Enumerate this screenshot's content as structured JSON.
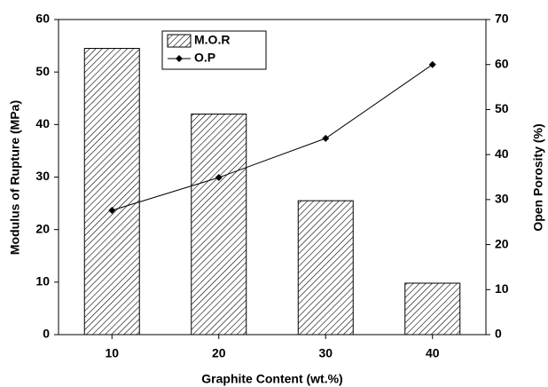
{
  "chart_data": {
    "type": "bar",
    "xlabel": "Graphite Content (wt.%)",
    "ylabel": "Modulus of Rupture (MPa)",
    "y2label": "Open Porosity (%)",
    "categories": [
      "10",
      "20",
      "30",
      "40"
    ],
    "series": [
      {
        "name": "M.O.R",
        "type": "bar",
        "color": "#000000",
        "values": [
          54.5,
          42,
          25.5,
          9.8
        ]
      },
      {
        "name": "O.P",
        "type": "line",
        "axis": "y2",
        "color": "#000000",
        "values": [
          27.6,
          34.9,
          43.6,
          60
        ]
      }
    ],
    "ylim": [
      0,
      60
    ],
    "yticks": [
      0,
      10,
      20,
      30,
      40,
      50,
      60
    ],
    "y2lim": [
      0,
      70
    ],
    "y2ticks": [
      0,
      10,
      20,
      30,
      40,
      50,
      60,
      70
    ],
    "legend": "upper-left"
  }
}
